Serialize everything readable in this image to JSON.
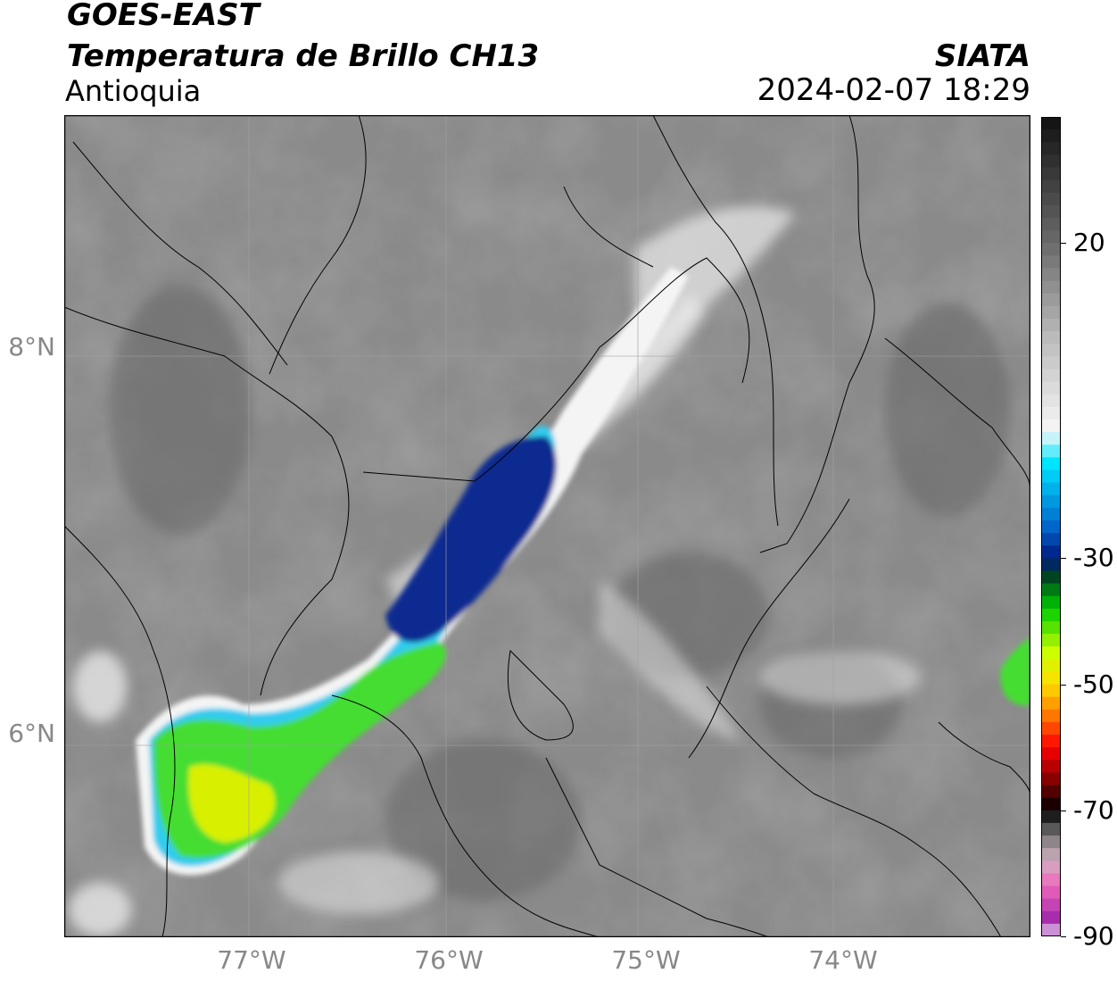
{
  "header": {
    "title_line1": "GOES-EAST",
    "title_line2": "Temperatura de Brillo CH13",
    "region": "Antioquia",
    "credit": "SIATA",
    "datetime": "2024-02-07 18:29"
  },
  "map": {
    "lat_labels": [
      {
        "text": "8°N",
        "lat": 8
      },
      {
        "text": "6°N",
        "lat": 6
      }
    ],
    "lon_labels": [
      {
        "text": "77°W",
        "lon": -77
      },
      {
        "text": "76°W",
        "lon": -76
      },
      {
        "text": "75°W",
        "lon": -75
      },
      {
        "text": "74°W",
        "lon": -74
      }
    ],
    "extent": {
      "lon_min": -77.95,
      "lon_max": -73.05,
      "lat_min": 4.95,
      "lat_max": 9.2
    },
    "background_color": "#8a8a8a",
    "border_color": "#000000",
    "grid_color": "#a0a0a0"
  },
  "colorbar": {
    "ticks": [
      "20",
      "-30",
      "-50",
      "-70",
      "-90"
    ],
    "tick_values": [
      20,
      -30,
      -50,
      -70,
      -90
    ],
    "range": [
      -90,
      40
    ],
    "stops": [
      {
        "v": 40,
        "color": "#111111"
      },
      {
        "v": 20,
        "color": "#6a6a6a"
      },
      {
        "v": 5,
        "color": "#bbbbbb"
      },
      {
        "v": -10,
        "color": "#f7f7f7"
      },
      {
        "v": -15,
        "color": "#00e5ff"
      },
      {
        "v": -25,
        "color": "#0066cc"
      },
      {
        "v": -30,
        "color": "#001a80"
      },
      {
        "v": -33,
        "color": "#004422"
      },
      {
        "v": -38,
        "color": "#00cc00"
      },
      {
        "v": -45,
        "color": "#ccff00"
      },
      {
        "v": -50,
        "color": "#ffdd00"
      },
      {
        "v": -55,
        "color": "#ff7700"
      },
      {
        "v": -60,
        "color": "#ff0000"
      },
      {
        "v": -65,
        "color": "#880000"
      },
      {
        "v": -70,
        "color": "#000000"
      },
      {
        "v": -74,
        "color": "#777777"
      },
      {
        "v": -78,
        "color": "#d0b0c0"
      },
      {
        "v": -82,
        "color": "#ee66bb"
      },
      {
        "v": -88,
        "color": "#9922aa"
      },
      {
        "v": -90,
        "color": "#ffffff"
      }
    ]
  }
}
